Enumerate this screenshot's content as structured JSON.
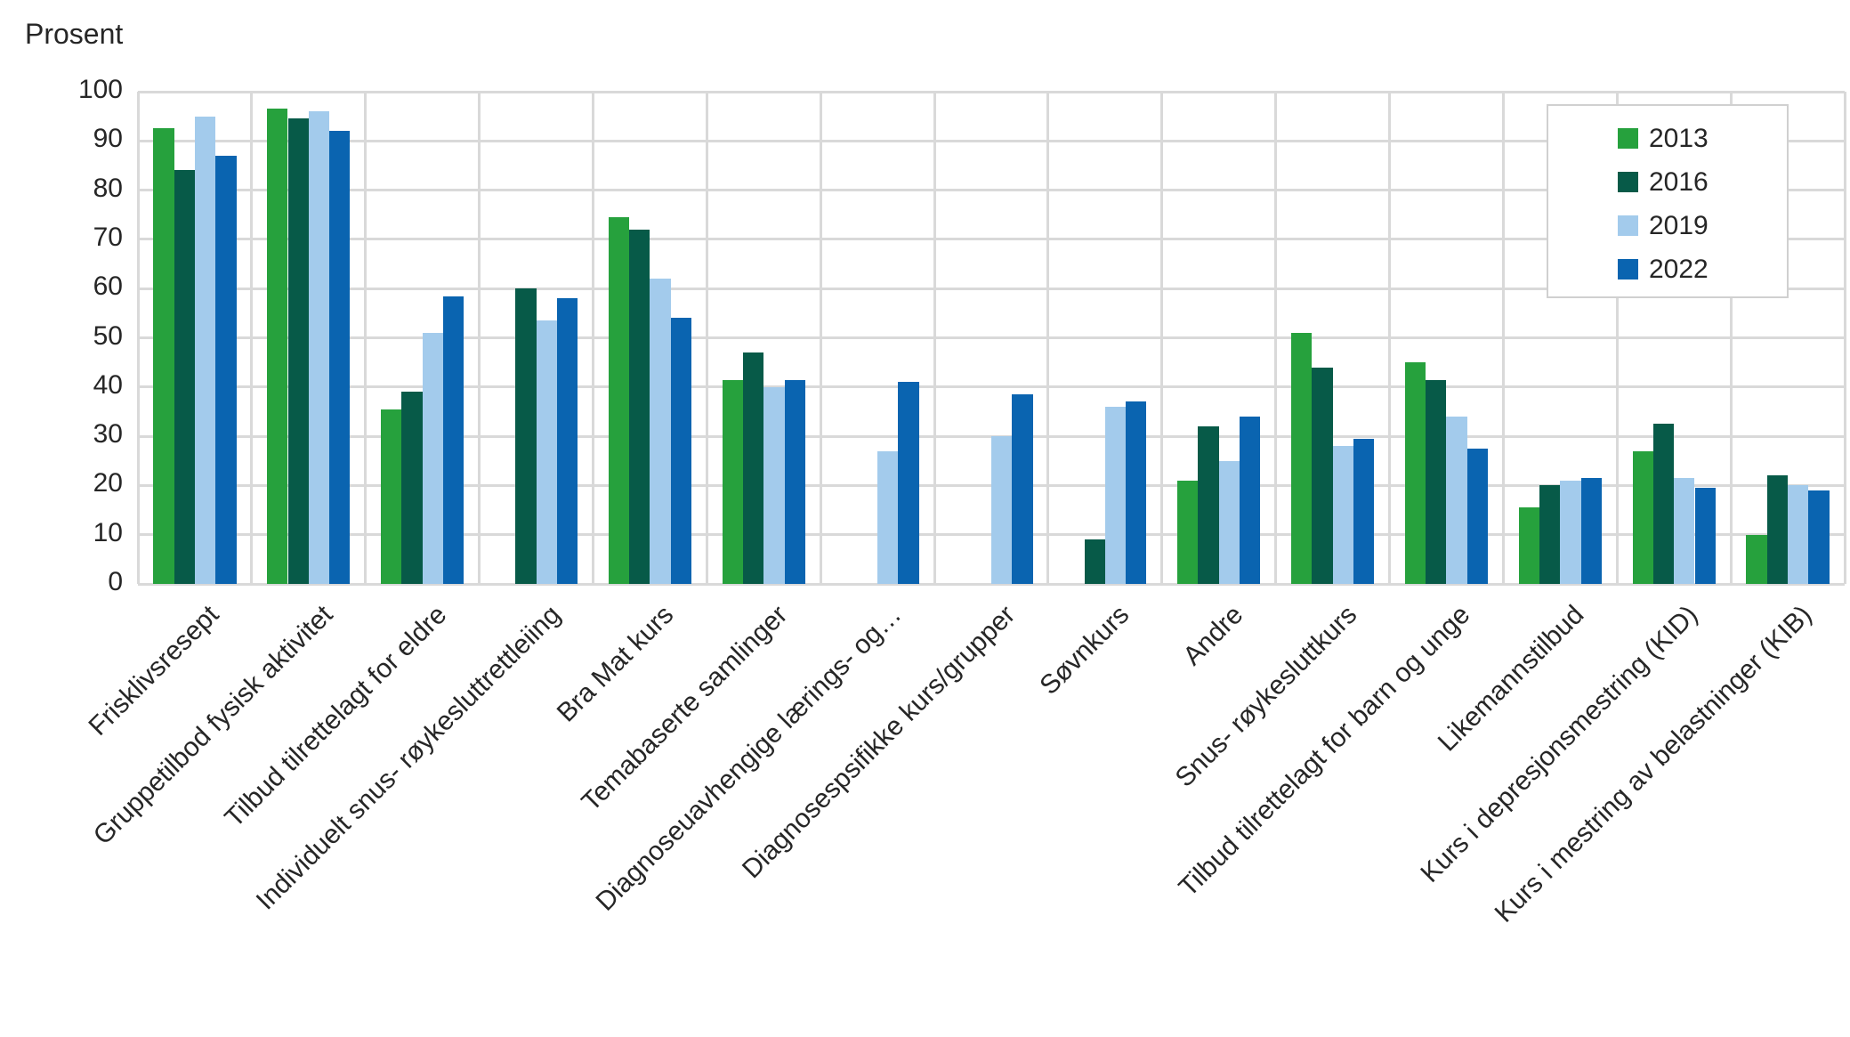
{
  "colors": {
    "gridline": "#D9D9D9",
    "text": "#262626",
    "legend_border": "#D0D0D0",
    "background": "#FFFFFF"
  },
  "chart_data": {
    "type": "bar",
    "title": "",
    "ylabel": "Prosent",
    "xlabel": "",
    "ylim": [
      0,
      100
    ],
    "ytick_step": 10,
    "grid": "both",
    "legend_position": "top-right overlay box",
    "categories": [
      "Frisklivsresept",
      "Gruppetilbod fysisk aktivitet",
      "Tilbud tilrettelagt for eldre",
      "Individuelt snus- røykesluttrettleiing",
      "Bra Mat kurs",
      "Temabaserte samlinger",
      "Diagnoseuavhengige lærings- og…",
      "Diagnosespsifikke kurs/grupper",
      "Søvnkurs",
      "Andre",
      "Snus- røykesluttkurs",
      "Tilbud tilrettelagt for barn og unge",
      "Likemannstilbud",
      "Kurs i depresjonsmestring (KID)",
      "Kurs i mestring av belastninger (KIB)"
    ],
    "series": [
      {
        "name": "2013",
        "color": "#26A13D",
        "values": [
          92.5,
          96.5,
          35.5,
          null,
          74.5,
          41.5,
          null,
          null,
          null,
          21,
          51,
          45,
          15.5,
          27,
          10
        ]
      },
      {
        "name": "2016",
        "color": "#075A48",
        "values": [
          84,
          94.5,
          39,
          60,
          72,
          47,
          null,
          null,
          9,
          32,
          44,
          41.5,
          20,
          32.5,
          22
        ]
      },
      {
        "name": "2019",
        "color": "#A3CBEC",
        "values": [
          95,
          96,
          51,
          53.5,
          62,
          40,
          27,
          30,
          36,
          25,
          28,
          34,
          21,
          21.5,
          20
        ]
      },
      {
        "name": "2022",
        "color": "#0A64B0",
        "values": [
          87,
          92,
          58.5,
          58,
          54,
          41.5,
          41,
          38.5,
          37,
          34,
          29.5,
          27.5,
          21.5,
          19.5,
          19
        ]
      }
    ]
  }
}
